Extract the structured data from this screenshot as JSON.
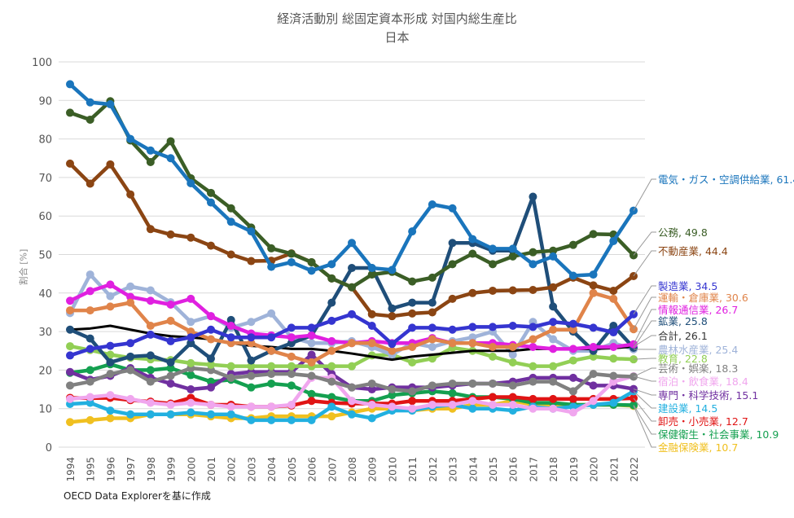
{
  "chart_data": {
    "type": "line",
    "title": "経済活動別 総固定資本形成 対国内総生産比",
    "subtitle": "日本",
    "xlabel": "",
    "ylabel": "割合 [%]",
    "ylim": [
      0,
      100
    ],
    "yticks": [
      0,
      10,
      20,
      30,
      40,
      50,
      60,
      70,
      80,
      90,
      100
    ],
    "grid": true,
    "legend": "right-end labels",
    "x": [
      1994,
      1995,
      1996,
      1997,
      1998,
      1999,
      2000,
      2001,
      2002,
      2003,
      2004,
      2005,
      2006,
      2007,
      2008,
      2009,
      2010,
      2011,
      2012,
      2013,
      2014,
      2015,
      2016,
      2017,
      2018,
      2019,
      2020,
      2021,
      2022
    ],
    "series": [
      {
        "name": "電気・ガス・空調供給業",
        "label": "電気・ガス・空調供給業, 61.4",
        "color": "#1a75bc",
        "values": [
          94.2,
          89.5,
          89,
          80,
          77,
          75,
          68.5,
          63.5,
          58.5,
          56,
          46.8,
          48,
          45.8,
          47.5,
          53,
          46.5,
          46,
          56,
          63,
          62,
          54,
          51.5,
          51.5,
          47.5,
          49.5,
          44.5,
          44.8,
          53.5,
          61.4
        ]
      },
      {
        "name": "公務",
        "label": "公務, 49.8",
        "color": "#3b5e26",
        "values": [
          86.8,
          85,
          89.8,
          79.6,
          74,
          79.4,
          69.8,
          66,
          62,
          57,
          51.6,
          50.2,
          48,
          43.8,
          41.5,
          44.8,
          45.5,
          43,
          44,
          47.5,
          50.2,
          47.5,
          49.5,
          50.6,
          51,
          52.5,
          55.3,
          55.2,
          49.8
        ]
      },
      {
        "name": "不動産業",
        "label": "不動産業, 44.4",
        "color": "#8b4513",
        "values": [
          73.6,
          68.4,
          73.4,
          65.6,
          56.6,
          55.2,
          54.4,
          52.3,
          50,
          48.3,
          48.4,
          50.3,
          48,
          43.8,
          41.5,
          34.5,
          34,
          34.7,
          35,
          38.5,
          40,
          40.6,
          40.7,
          40.8,
          41.5,
          44,
          42,
          40.6,
          44.4
        ]
      },
      {
        "name": "製造業",
        "label": "製造業, 34.5",
        "color": "#3535d0",
        "values": [
          23.8,
          25.5,
          26.3,
          27,
          29.2,
          27.5,
          28.5,
          30.5,
          28.5,
          28.5,
          28.5,
          31,
          31,
          32.8,
          34.5,
          31.5,
          26.8,
          31,
          31,
          30.5,
          31.2,
          31.2,
          31.5,
          31.2,
          32.5,
          32,
          31,
          29.8,
          34.5
        ]
      },
      {
        "name": "運輸・倉庫業",
        "label": "運輸・倉庫業, 30.6",
        "color": "#e0844a",
        "values": [
          35.5,
          35.5,
          36.5,
          37.5,
          31.5,
          32.8,
          30,
          28,
          27,
          27,
          25,
          23.5,
          22,
          25,
          27,
          27,
          25,
          26,
          28,
          27,
          27,
          26,
          26,
          28,
          30.5,
          30.5,
          40,
          38.5,
          30.6
        ]
      },
      {
        "name": "情報通信業",
        "label": "情報通信業, 26.7",
        "color": "#e020e0",
        "values": [
          38,
          40.5,
          42.2,
          39,
          38,
          37,
          38.5,
          34,
          31.5,
          29.5,
          29,
          28.5,
          29,
          27.5,
          27,
          27.5,
          27,
          27,
          28.3,
          27,
          27,
          27,
          26.5,
          26,
          25.5,
          25.5,
          26,
          26,
          26.7
        ]
      },
      {
        "name": "鉱業",
        "label": "鉱業, 25.8",
        "color": "#1f4e79",
        "values": [
          30.5,
          28.2,
          22,
          23.5,
          23.8,
          22,
          27,
          23,
          33,
          22.5,
          25,
          27,
          29,
          37.5,
          46.5,
          46.5,
          36,
          37.5,
          37.5,
          53,
          53,
          51,
          51,
          65,
          36.5,
          30,
          25,
          31.5,
          25.8
        ]
      },
      {
        "name": "合計",
        "label": "合計, 26.1",
        "color": "#000000",
        "values": [
          30.5,
          30.8,
          31.5,
          30.5,
          29.5,
          28.8,
          28.5,
          28,
          27,
          26.3,
          26,
          25.5,
          25.5,
          25,
          24.3,
          23.5,
          22.7,
          23.5,
          24,
          24.5,
          25,
          25,
          25,
          25.5,
          25.5,
          25.5,
          25.5,
          25.7,
          26.1
        ]
      },
      {
        "name": "農林水産業",
        "label": "農林水産業, 25.4",
        "color": "#9fb3d9",
        "values": [
          34.8,
          44.8,
          39.2,
          41.7,
          40.7,
          37.6,
          32.5,
          34,
          31,
          32.5,
          34.7,
          28.5,
          27,
          27,
          27.5,
          26,
          24,
          27,
          26,
          27.5,
          28.5,
          30,
          24,
          32.5,
          28,
          25,
          25,
          27,
          25.4
        ]
      },
      {
        "name": "教育",
        "label": "教育, 22.8",
        "color": "#92cf55",
        "values": [
          26.2,
          25.2,
          24,
          23.2,
          22.8,
          22.6,
          21.8,
          21.4,
          21,
          21,
          21,
          21,
          21,
          21,
          21,
          23.8,
          24,
          22,
          23,
          25.8,
          25,
          23.5,
          22,
          21,
          21,
          22.5,
          23.5,
          23,
          22.8
        ]
      },
      {
        "name": "芸術・娯楽",
        "label": "芸術・娯楽, 18.3",
        "color": "#808080",
        "values": [
          16,
          17,
          19,
          20,
          17,
          18.5,
          20.5,
          20,
          18,
          18.5,
          19,
          19,
          18.5,
          17,
          15.5,
          16.5,
          15,
          14.5,
          16,
          16.5,
          16.5,
          16.5,
          16,
          17,
          17,
          14.5,
          19,
          18.5,
          18.3
        ]
      },
      {
        "name": "宿泊・飲食業",
        "label": "宿泊・飲食業, 18.4",
        "color": "#f0a6ee",
        "values": [
          12.5,
          13,
          13.5,
          12.5,
          11.5,
          11,
          11.5,
          11,
          10.5,
          10.5,
          10.5,
          11,
          18,
          18,
          12,
          11,
          10.5,
          10,
          11,
          11,
          12,
          11,
          11,
          10,
          10,
          9,
          12,
          17,
          18.4
        ]
      },
      {
        "name": "専門・科学技術",
        "label": "専門・科学技術, 15.1",
        "color": "#7030a0",
        "values": [
          19.5,
          17.5,
          18.5,
          20.5,
          18,
          16.5,
          15,
          15.5,
          19,
          19.5,
          19.5,
          19.5,
          24,
          19,
          15.5,
          15,
          15.5,
          15.5,
          15.5,
          16,
          16.5,
          16.5,
          17,
          18,
          18,
          18,
          16,
          16,
          15.1
        ]
      },
      {
        "name": "建設業",
        "label": "建設業, 14.5",
        "color": "#22b0e0",
        "values": [
          11.2,
          11.5,
          9.5,
          8.5,
          8.5,
          8.5,
          9,
          8.5,
          8.5,
          7,
          7,
          7,
          7,
          10.5,
          8.5,
          7.5,
          9.5,
          9.5,
          10.5,
          11,
          10,
          10,
          9.5,
          10.5,
          10,
          10.5,
          11,
          11.5,
          14.5
        ]
      },
      {
        "name": "卸売・小売業",
        "label": "卸売・小売業, 12.7",
        "color": "#e01414",
        "values": [
          12.8,
          12.7,
          12.8,
          12.2,
          11.8,
          11.3,
          12.8,
          11,
          11,
          10.5,
          10.5,
          10.8,
          12,
          11.5,
          11.3,
          11.3,
          11.3,
          12,
          12,
          12,
          12.5,
          13,
          13,
          12.5,
          12.5,
          12.5,
          12.5,
          12.5,
          12.7
        ]
      },
      {
        "name": "保健衛生・社会事業",
        "label": "保健衛生・社会事業, 10.9",
        "color": "#14a050",
        "values": [
          19.3,
          20,
          21.5,
          20,
          20,
          20.5,
          18.7,
          17,
          17.5,
          15.5,
          16.5,
          16,
          13.8,
          13,
          12,
          12,
          13.5,
          14,
          14.5,
          14,
          13,
          13,
          12.5,
          11.5,
          11.5,
          11,
          11,
          11,
          10.9
        ]
      },
      {
        "name": "金融保険業",
        "label": "金融保険業, 10.7",
        "color": "#f0c020",
        "values": [
          6.5,
          7,
          7.5,
          7.5,
          8.5,
          8.5,
          8.5,
          8,
          7.5,
          7.5,
          8,
          8,
          8,
          8,
          9,
          10,
          10,
          9.5,
          10,
          10,
          11,
          11,
          12,
          11,
          11,
          11,
          11,
          11,
          10.7
        ]
      }
    ]
  },
  "source": "OECD Data Explorerを基に作成"
}
